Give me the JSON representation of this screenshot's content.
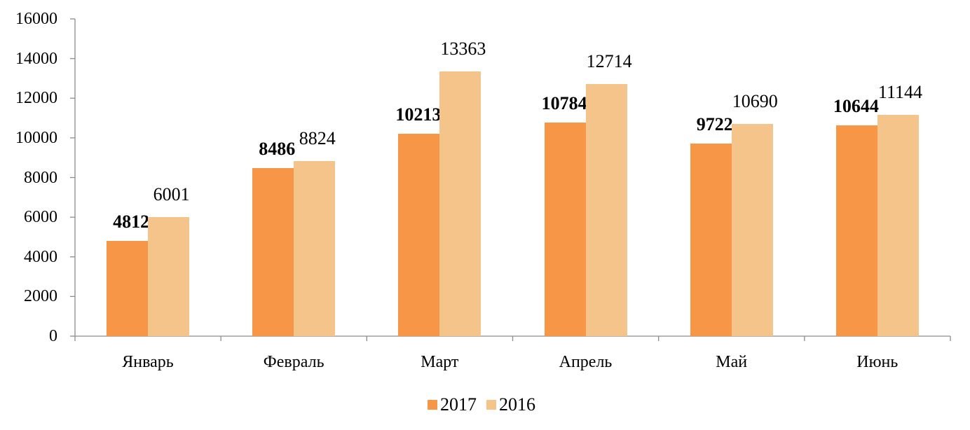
{
  "chart_data": {
    "type": "bar",
    "title": "",
    "xlabel": "",
    "ylabel": "",
    "categories": [
      "Январь",
      "Февраль",
      "Март",
      "Апрель",
      "Май",
      "Июнь"
    ],
    "series": [
      {
        "name": "2017",
        "color": "#F79646",
        "label_bold": true,
        "values": [
          4812,
          8486,
          10213,
          10784,
          9722,
          10644
        ]
      },
      {
        "name": "2016",
        "color": "#F5C48A",
        "label_bold": false,
        "values": [
          6001,
          8824,
          13363,
          12714,
          10690,
          11144
        ]
      }
    ],
    "ylim": [
      0,
      16000
    ],
    "yticks": [
      0,
      2000,
      4000,
      6000,
      8000,
      10000,
      12000,
      14000,
      16000
    ],
    "grid": false,
    "legend_position": "bottom"
  },
  "legend": {
    "items": [
      {
        "label": "2017",
        "color": "#F79646"
      },
      {
        "label": "2016",
        "color": "#F5C48A"
      }
    ]
  }
}
